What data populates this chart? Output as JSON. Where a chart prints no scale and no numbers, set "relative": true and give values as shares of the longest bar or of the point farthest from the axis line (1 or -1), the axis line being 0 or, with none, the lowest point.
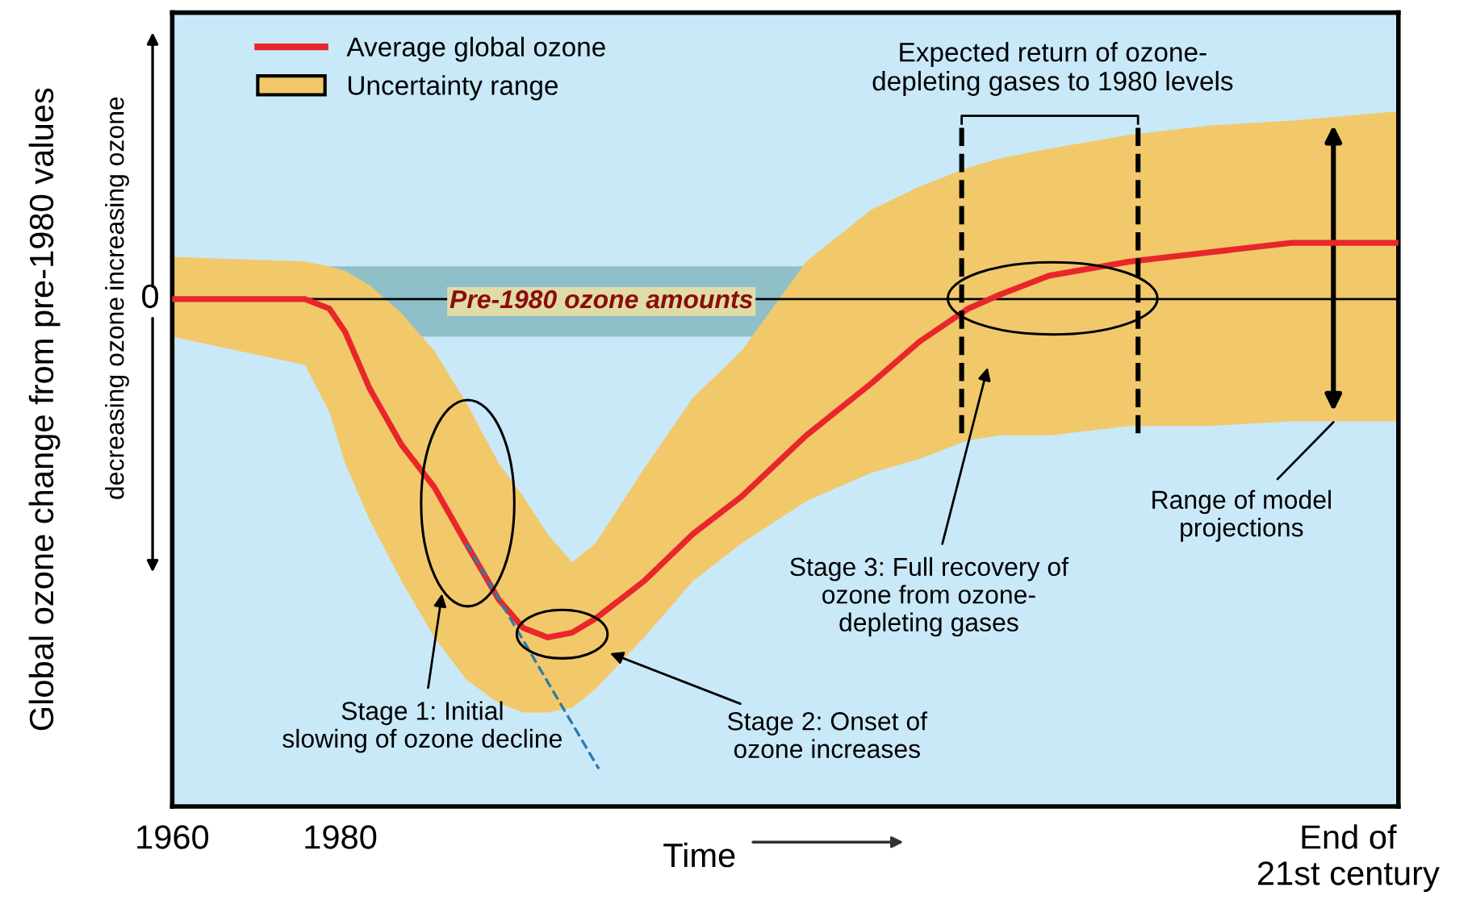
{
  "chart_data": {
    "type": "line",
    "relative": true,
    "ylabel": "Global ozone change from pre-1980 values",
    "xlabel": "Time",
    "x": [
      1960,
      1975.8,
      1978.7,
      1980.6,
      1983.5,
      1987.3,
      1991.2,
      1995.0,
      1998.9,
      2001.8,
      2004.7,
      2007.6,
      2010.4,
      2016.2,
      2022.0,
      2027.8,
      2035.5,
      2043.2,
      2049.0,
      2054.8,
      2058.6,
      2064.4,
      2074.0,
      2083.7,
      2093.3,
      2106
    ],
    "xlim": [
      1960,
      2106
    ],
    "xticks": [
      1960,
      1980,
      {
        "value": 2100,
        "label": "End of\n21st century"
      }
    ],
    "series": [
      {
        "name": "Average global ozone",
        "color": "#e8262b",
        "values": [
          0,
          0,
          -0.02,
          -0.07,
          -0.19,
          -0.31,
          -0.4,
          -0.52,
          -0.64,
          -0.7,
          -0.72,
          -0.71,
          -0.68,
          -0.6,
          -0.5,
          -0.42,
          -0.29,
          -0.18,
          -0.09,
          -0.02,
          0.01,
          0.05,
          0.08,
          0.1,
          0.12,
          0.12
        ],
        "upper": [
          0.09,
          0.08,
          0.07,
          0.06,
          0.03,
          -0.03,
          -0.11,
          -0.22,
          -0.35,
          -0.42,
          -0.5,
          -0.56,
          -0.52,
          -0.36,
          -0.21,
          -0.11,
          0.08,
          0.19,
          0.24,
          0.28,
          0.3,
          0.32,
          0.35,
          0.37,
          0.38,
          0.4
        ],
        "lower": [
          -0.08,
          -0.14,
          -0.24,
          -0.35,
          -0.47,
          -0.6,
          -0.72,
          -0.81,
          -0.86,
          -0.88,
          -0.88,
          -0.87,
          -0.83,
          -0.72,
          -0.6,
          -0.52,
          -0.43,
          -0.37,
          -0.34,
          -0.3,
          -0.29,
          -0.29,
          -0.27,
          -0.27,
          -0.26,
          -0.26
        ]
      },
      {
        "type": "line",
        "color": "#2b7bb0",
        "line_style": "dashed",
        "x": [
          1995.0,
          2010.8
        ],
        "values": [
          -0.52,
          -1
        ]
      }
    ],
    "bands": [
      {
        "axis": "y",
        "from": -0.08,
        "to": 0.07,
        "label": "Pre-1980 ozone amounts",
        "color": "#5e9fa3"
      }
    ],
    "ref_lines": [
      {
        "axis": "y",
        "value": 0,
        "label": "0",
        "color": "#000000"
      },
      {
        "axis": "x",
        "value": 2054,
        "line_style": "dashed",
        "color": "#000000"
      },
      {
        "axis": "x",
        "value": 2075,
        "line_style": "dashed",
        "color": "#000000"
      }
    ],
    "annotations": [
      "Stage 1: Initial\nslowing of ozone decline",
      "Stage 2: Onset of\nozone increases",
      "Stage 3: Full recovery of\nozone from ozone-\ndepleting gases",
      "Range of model\nprojections",
      "Expected return of ozone-\ndepleting gases to 1980 levels",
      "increasing ozone",
      "decreasing ozone",
      "Uncertainty range"
    ],
    "legend": "top left"
  }
}
